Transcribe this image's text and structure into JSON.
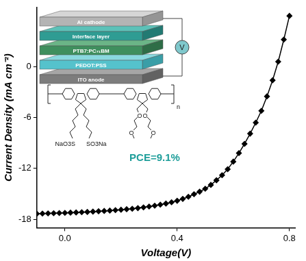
{
  "chart_data": {
    "type": "line",
    "x_label": "Voltage(V)",
    "y_label": "Current Density (mA cm⁻²)",
    "x": [
      -0.1,
      -0.08,
      -0.06,
      -0.04,
      -0.02,
      0.0,
      0.02,
      0.04,
      0.06,
      0.08,
      0.1,
      0.12,
      0.14,
      0.16,
      0.18,
      0.2,
      0.22,
      0.24,
      0.26,
      0.28,
      0.3,
      0.32,
      0.34,
      0.36,
      0.38,
      0.4,
      0.42,
      0.44,
      0.46,
      0.48,
      0.5,
      0.52,
      0.54,
      0.56,
      0.58,
      0.6,
      0.62,
      0.64,
      0.66,
      0.68,
      0.7,
      0.72,
      0.74,
      0.76,
      0.78,
      0.8
    ],
    "series": [
      {
        "color": "#000000",
        "marker": "diamond",
        "line_style": "solid",
        "values": [
          -17.35,
          -17.33,
          -17.31,
          -17.29,
          -17.27,
          -17.25,
          -17.22,
          -17.2,
          -17.17,
          -17.14,
          -17.1,
          -17.06,
          -17.02,
          -16.98,
          -16.93,
          -16.88,
          -16.82,
          -16.76,
          -16.69,
          -16.6,
          -16.5,
          -16.4,
          -16.28,
          -16.15,
          -16.0,
          -15.82,
          -15.6,
          -15.35,
          -15.05,
          -14.75,
          -14.4,
          -13.95,
          -13.4,
          -12.8,
          -12.1,
          -11.2,
          -10.2,
          -9.1,
          -7.9,
          -6.6,
          -5.2,
          -3.5,
          -1.6,
          0.6,
          3.2,
          6.0
        ]
      }
    ],
    "xlim": [
      -0.1,
      0.82
    ],
    "xticks": [
      {
        "value": 0,
        "label": "0.0"
      },
      {
        "value": 0.4,
        "label": "0.4"
      },
      {
        "value": 0.8,
        "label": "0.8"
      }
    ],
    "ylim": [
      -19,
      7
    ],
    "yticks": [
      -18,
      -12,
      -6,
      0
    ],
    "grid": false,
    "annotations": {
      "device_layers": [
        "Al cathode",
        "Interface layer",
        "PTB7:PC₇₁BM",
        "PEDOT:PSS",
        "ITO anode"
      ],
      "meter": "V",
      "structure_labels": [
        "NaO3S",
        "SO3Na",
        "O",
        "O",
        "O",
        "O",
        "n"
      ],
      "pce": "PCE=9.1%"
    }
  }
}
